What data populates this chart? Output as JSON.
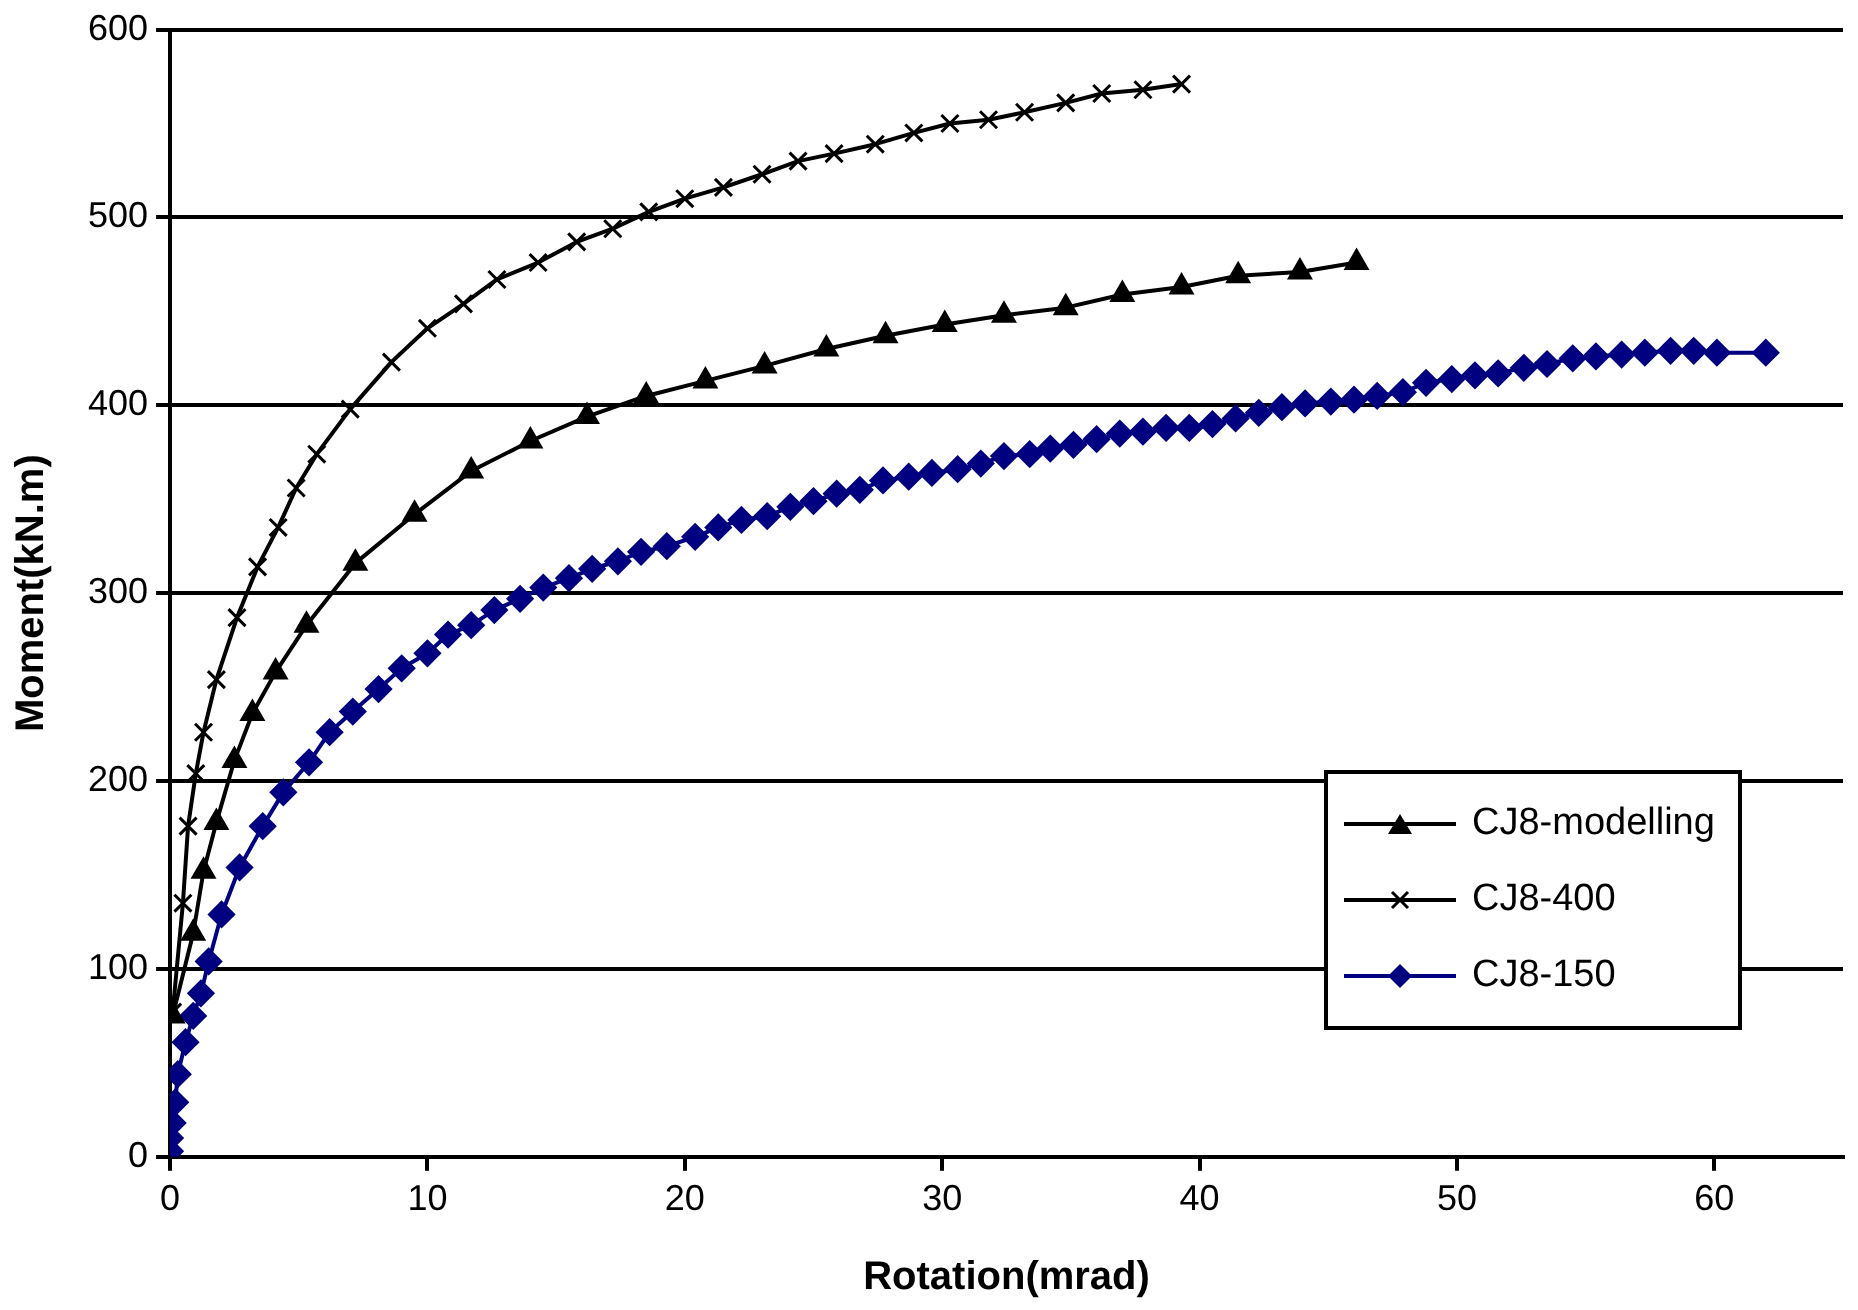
{
  "chart_data": {
    "type": "line",
    "xlabel": "Rotation(mrad)",
    "ylabel": "Moment(kN.m)",
    "xlim": [
      0,
      65
    ],
    "xticks": [
      0,
      10,
      20,
      30,
      40,
      50,
      60
    ],
    "ylim": [
      0,
      600
    ],
    "yticks": [
      0,
      100,
      200,
      300,
      400,
      500,
      600
    ],
    "grid": "y",
    "legend": "right",
    "line_style": "solid",
    "series": [
      {
        "name": "CJ8-modelling",
        "color": "#000000",
        "marker": "triangle",
        "x": [
          0.1,
          0.9,
          1.3,
          1.8,
          2.5,
          3.2,
          4.1,
          5.3,
          7.2,
          9.5,
          11.7,
          14.0,
          16.2,
          18.5,
          20.8,
          23.1,
          25.5,
          27.8,
          30.1,
          32.4,
          34.8,
          37.0,
          39.3,
          41.5,
          43.9,
          46.1
        ],
        "values": [
          75,
          119,
          152,
          178,
          211,
          236,
          258,
          283,
          316,
          342,
          365,
          381,
          394,
          405,
          413,
          421,
          430,
          437,
          443,
          448,
          452,
          459,
          463,
          469,
          471,
          476
        ]
      },
      {
        "name": "CJ8-400",
        "color": "#000000",
        "marker": "cross",
        "x": [
          0.1,
          0.5,
          0.7,
          1.0,
          1.3,
          1.8,
          2.6,
          3.4,
          4.2,
          4.9,
          5.7,
          7.0,
          8.6,
          10.0,
          11.4,
          12.7,
          14.3,
          15.8,
          17.2,
          18.6,
          20.0,
          21.5,
          23.0,
          24.4,
          25.8,
          27.4,
          28.9,
          30.3,
          31.8,
          33.2,
          34.8,
          36.2,
          37.8,
          39.3
        ],
        "values": [
          77,
          135,
          176,
          204,
          226,
          254,
          287,
          314,
          335,
          356,
          374,
          398,
          423,
          441,
          454,
          467,
          476,
          487,
          494,
          503,
          510,
          516,
          523,
          530,
          534,
          539,
          545,
          550,
          552,
          556,
          561,
          566,
          568,
          571
        ]
      },
      {
        "name": "CJ8-150",
        "color": "#000080",
        "marker": "diamond",
        "x": [
          0,
          0,
          0.1,
          0.2,
          0.3,
          0.6,
          0.9,
          1.2,
          1.5,
          2.0,
          2.7,
          3.6,
          4.4,
          5.4,
          6.2,
          7.1,
          8.1,
          9.0,
          10.0,
          10.8,
          11.7,
          12.6,
          13.6,
          14.5,
          15.5,
          16.4,
          17.4,
          18.3,
          19.3,
          20.4,
          21.3,
          22.2,
          23.2,
          24.1,
          25.0,
          25.9,
          26.8,
          27.7,
          28.7,
          29.6,
          30.6,
          31.5,
          32.4,
          33.4,
          34.2,
          35.1,
          36.0,
          36.9,
          37.8,
          38.7,
          39.6,
          40.5,
          41.4,
          42.3,
          43.2,
          44.1,
          45.1,
          46.0,
          46.9,
          47.9,
          48.8,
          49.8,
          50.7,
          51.6,
          52.6,
          53.5,
          54.5,
          55.4,
          56.4,
          57.3,
          58.3,
          59.2,
          60.1,
          62.0
        ],
        "values": [
          3,
          10,
          18,
          29,
          44,
          61,
          75,
          87,
          104,
          129,
          154,
          176,
          194,
          210,
          226,
          237,
          249,
          260,
          268,
          278,
          283,
          291,
          297,
          303,
          308,
          313,
          317,
          322,
          325,
          330,
          335,
          339,
          341,
          346,
          349,
          353,
          355,
          360,
          362,
          364,
          366,
          369,
          373,
          374,
          377,
          379,
          382,
          385,
          386,
          388,
          388,
          390,
          393,
          396,
          399,
          401,
          402,
          403,
          405,
          407,
          412,
          414,
          416,
          417,
          420,
          422,
          425,
          426,
          427,
          428,
          429,
          429,
          428,
          428
        ]
      }
    ]
  }
}
